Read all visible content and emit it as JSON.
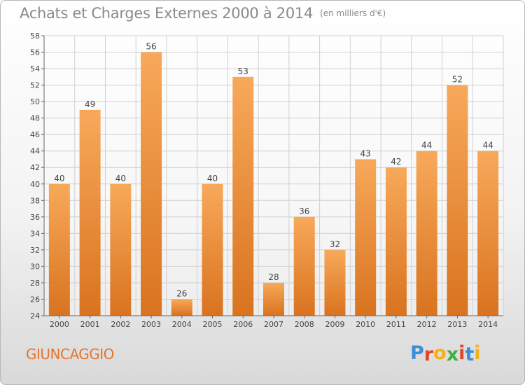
{
  "header": {
    "title": "Achats et Charges Externes 2000 à 2014",
    "unit": "(en milliers d'€)"
  },
  "footer": {
    "commune": "GIUNCAGGIO",
    "brand": "Proxiti"
  },
  "colors": {
    "bar_light": "#f7a95a",
    "bar_dark": "#d9731f",
    "commune_text": "#e5742d",
    "brand_letters": [
      "#3a8fd6",
      "#e0442a",
      "#f3b117",
      "#3fae49",
      "#e0442a",
      "#3a8fd6",
      "#f3b117"
    ]
  },
  "chart_data": {
    "type": "bar",
    "categories": [
      "2000",
      "2001",
      "2002",
      "2003",
      "2004",
      "2005",
      "2006",
      "2007",
      "2008",
      "2009",
      "2010",
      "2011",
      "2012",
      "2013",
      "2014"
    ],
    "values": [
      40,
      49,
      40,
      56,
      26,
      40,
      53,
      28,
      36,
      32,
      43,
      42,
      44,
      52,
      44
    ],
    "title": "Achats et Charges Externes 2000 à 2014",
    "subtitle": "(en milliers d'€)",
    "xlabel": "",
    "ylabel": "",
    "ylim": [
      24,
      58
    ],
    "yticks": [
      24,
      26,
      28,
      30,
      32,
      34,
      36,
      38,
      40,
      42,
      44,
      46,
      48,
      50,
      52,
      54,
      56,
      58
    ],
    "grid": true,
    "legend": "none",
    "data_labels": true
  }
}
